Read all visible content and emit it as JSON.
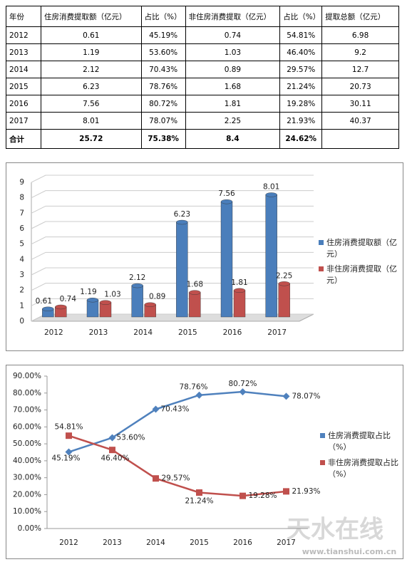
{
  "table": {
    "header": [
      "年份",
      "住房消费提取额（亿元）",
      "占比（%）",
      "非住房消费提取（亿元）",
      "占比（%）",
      "提取总额（亿元）"
    ],
    "rows": [
      [
        "2012",
        "0.61",
        "45.19%",
        "0.74",
        "54.81%",
        "6.98"
      ],
      [
        "2013",
        "1.19",
        "53.60%",
        "1.03",
        "46.40%",
        "9.2"
      ],
      [
        "2014",
        "2.12",
        "70.43%",
        "0.89",
        "29.57%",
        "12.7"
      ],
      [
        "2015",
        "6.23",
        "78.76%",
        "1.68",
        "21.24%",
        "20.73"
      ],
      [
        "2016",
        "7.56",
        "80.72%",
        "1.81",
        "19.28%",
        "30.11"
      ],
      [
        "2017",
        "8.01",
        "78.07%",
        "2.25",
        "21.93%",
        "40.37"
      ]
    ],
    "total": [
      "合计",
      "25.72",
      "75.38%",
      "8.4",
      "24.62%"
    ]
  },
  "chart_data": [
    {
      "type": "bar",
      "categories": [
        "2012",
        "2013",
        "2014",
        "2015",
        "2016",
        "2017"
      ],
      "series": [
        {
          "name": "住房消费提取额（亿元）",
          "color": "#4a7ebb",
          "values": [
            0.61,
            1.19,
            2.12,
            6.23,
            7.56,
            8.01
          ]
        },
        {
          "name": "非住房消费提取（亿元）",
          "color": "#c0504d",
          "values": [
            0.74,
            1.03,
            0.89,
            1.68,
            1.81,
            2.25
          ]
        }
      ],
      "ylim": [
        0,
        9
      ],
      "yticks": [
        0,
        1,
        2,
        3,
        4,
        5,
        6,
        7,
        8,
        9
      ],
      "grid": true,
      "legend": "right"
    },
    {
      "type": "line",
      "categories": [
        "2012",
        "2013",
        "2014",
        "2015",
        "2016",
        "2017"
      ],
      "series": [
        {
          "name": "住房消费提取占比（%）",
          "color": "#4f81bd",
          "marker": "diamond",
          "values": [
            45.19,
            53.6,
            70.43,
            78.76,
            80.72,
            78.07
          ],
          "value_labels": [
            "45.19%",
            "53.60%",
            "70.43%",
            "78.76%",
            "80.72%",
            "78.07%"
          ]
        },
        {
          "name": "非住房消费提取占比（%）",
          "color": "#c0504d",
          "marker": "square",
          "values": [
            54.81,
            46.4,
            29.57,
            21.24,
            19.28,
            21.93
          ],
          "value_labels": [
            "54.81%",
            "46.40%",
            "29.57%",
            "21.24%",
            "19.28%",
            "21.93%"
          ]
        }
      ],
      "ylim": [
        0,
        90
      ],
      "yticks": [
        {
          "value": 0,
          "label": "0.00%"
        },
        {
          "value": 10,
          "label": "10.00%"
        },
        {
          "value": 20,
          "label": "20.00%"
        },
        {
          "value": 30,
          "label": "30.00%"
        },
        {
          "value": 40,
          "label": "40.00%"
        },
        {
          "value": 50,
          "label": "50.00%"
        },
        {
          "value": 60,
          "label": "60.00%"
        },
        {
          "value": 70,
          "label": "70.00%"
        },
        {
          "value": 80,
          "label": "80.00%"
        },
        {
          "value": 90,
          "label": "90.00%"
        }
      ],
      "grid": false,
      "legend": "right"
    }
  ],
  "watermark": {
    "text": "天水在线",
    "url": "www.tianshui.com.cn"
  }
}
